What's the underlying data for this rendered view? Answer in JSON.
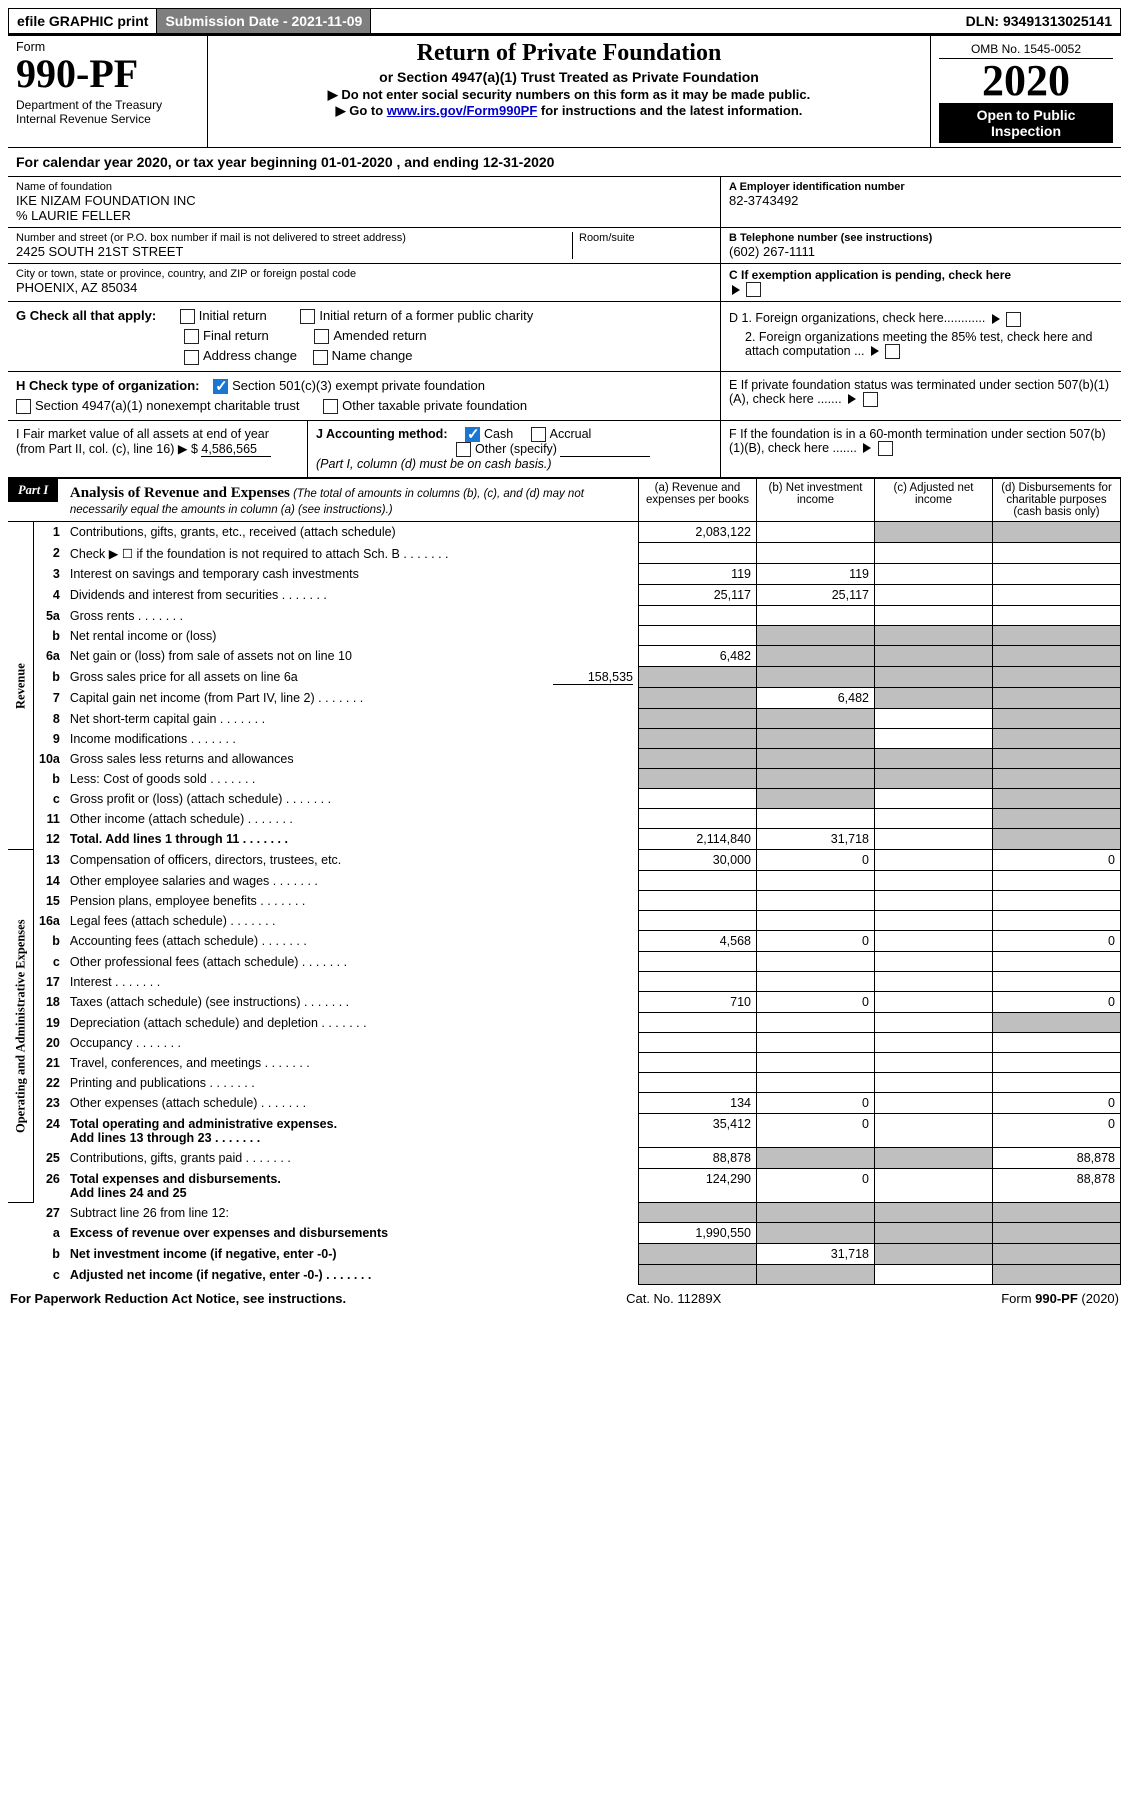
{
  "topbar": {
    "efile": "efile GRAPHIC print",
    "submission": "Submission Date - 2021-11-09",
    "dln": "DLN: 93491313025141"
  },
  "header": {
    "form_word": "Form",
    "form_no": "990-PF",
    "dept": "Department of the Treasury\nInternal Revenue Service",
    "title": "Return of Private Foundation",
    "subtitle": "or Section 4947(a)(1) Trust Treated as Private Foundation",
    "line1": "▶ Do not enter social security numbers on this form as it may be made public.",
    "line2_pre": "▶ Go to ",
    "line2_link": "www.irs.gov/Form990PF",
    "line2_post": " for instructions and the latest information.",
    "omb": "OMB No. 1545-0052",
    "year": "2020",
    "open": "Open to Public Inspection"
  },
  "calyear": "For calendar year 2020, or tax year beginning 01-01-2020                      , and ending 12-31-2020",
  "id": {
    "name_label": "Name of foundation",
    "name": "IKE NIZAM FOUNDATION INC\n% LAURIE FELLER",
    "ein_label": "A Employer identification number",
    "ein": "82-3743492",
    "addr_label": "Number and street (or P.O. box number if mail is not delivered to street address)",
    "addr": "2425 SOUTH 21ST STREET",
    "room_label": "Room/suite",
    "tel_label": "B Telephone number (see instructions)",
    "tel": "(602) 267-1111",
    "city_label": "City or town, state or province, country, and ZIP or foreign postal code",
    "city": "PHOENIX, AZ  85034",
    "c_label": "C If exemption application is pending, check here"
  },
  "g": {
    "label": "G Check all that apply:",
    "initial": "Initial return",
    "initial_former": "Initial return of a former public charity",
    "final": "Final return",
    "amended": "Amended return",
    "address": "Address change",
    "namechg": "Name change"
  },
  "h": {
    "label": "H Check type of organization:",
    "501c3": "Section 501(c)(3) exempt private foundation",
    "4947": "Section 4947(a)(1) nonexempt charitable trust",
    "other_tax": "Other taxable private foundation"
  },
  "d": {
    "d1": "D 1. Foreign organizations, check here............",
    "d2": "2. Foreign organizations meeting the 85% test, check here and attach computation ..."
  },
  "e": "E  If private foundation status was terminated under section 507(b)(1)(A), check here .......",
  "i": {
    "label": "I Fair market value of all assets at end of year (from Part II, col. (c), line 16)",
    "arrow": "▶ $",
    "value": "4,586,565"
  },
  "j": {
    "label": "J Accounting method:",
    "cash": "Cash",
    "accrual": "Accrual",
    "other": "Other (specify)",
    "note": "(Part I, column (d) must be on cash basis.)"
  },
  "f": "F  If the foundation is in a 60-month termination under section 507(b)(1)(B), check here .......",
  "part1": {
    "badge": "Part I",
    "title": "Analysis of Revenue and Expenses",
    "title_sub": " (The total of amounts in columns (b), (c), and (d) may not necessarily equal the amounts in column (a) (see instructions).)",
    "col_a": "(a)   Revenue and expenses per books",
    "col_b": "(b)   Net investment income",
    "col_c": "(c)   Adjusted net income",
    "col_d": "(d)  Disbursements for charitable purposes (cash basis only)"
  },
  "side": {
    "revenue": "Revenue",
    "expenses": "Operating and Administrative Expenses"
  },
  "rows": [
    {
      "n": "1",
      "t": "Contributions, gifts, grants, etc., received (attach schedule)",
      "a": "2,083,122",
      "b": "",
      "c": "shade",
      "d": "shade"
    },
    {
      "n": "2",
      "t": "Check ▶ ☐ if the foundation is not required to attach Sch. B",
      "dots": true
    },
    {
      "n": "3",
      "t": "Interest on savings and temporary cash investments",
      "a": "119",
      "b": "119"
    },
    {
      "n": "4",
      "t": "Dividends and interest from securities",
      "a": "25,117",
      "b": "25,117",
      "dots": true
    },
    {
      "n": "5a",
      "t": "Gross rents",
      "dots": true
    },
    {
      "n": "b",
      "t": "Net rental income or (loss)",
      "halfshade": true
    },
    {
      "n": "6a",
      "t": "Net gain or (loss) from sale of assets not on line 10",
      "a": "6,482",
      "b": "shade",
      "c": "shade",
      "d": "shade"
    },
    {
      "n": "b",
      "t": "Gross sales price for all assets on line 6a",
      "inline_val": "158,535",
      "allshade": true
    },
    {
      "n": "7",
      "t": "Capital gain net income (from Part IV, line 2)",
      "a": "shade",
      "b": "6,482",
      "c": "shade",
      "d": "shade",
      "dots": true
    },
    {
      "n": "8",
      "t": "Net short-term capital gain",
      "a": "shade",
      "b": "shade",
      "d": "shade",
      "dots": true
    },
    {
      "n": "9",
      "t": "Income modifications",
      "a": "shade",
      "b": "shade",
      "d": "shade",
      "dots": true
    },
    {
      "n": "10a",
      "t": "Gross sales less returns and allowances",
      "allshade": true
    },
    {
      "n": "b",
      "t": "Less: Cost of goods sold",
      "allshade": true,
      "dots": true
    },
    {
      "n": "c",
      "t": "Gross profit or (loss) (attach schedule)",
      "a": "",
      "b": "shade",
      "d": "shade",
      "dots": true
    },
    {
      "n": "11",
      "t": "Other income (attach schedule)",
      "d": "shade",
      "dots": true
    },
    {
      "n": "12",
      "t": "Total. Add lines 1 through 11",
      "a": "2,114,840",
      "b": "31,718",
      "d": "shade",
      "bold": true,
      "dots": true
    }
  ],
  "rows2": [
    {
      "n": "13",
      "t": "Compensation of officers, directors, trustees, etc.",
      "a": "30,000",
      "b": "0",
      "d": "0"
    },
    {
      "n": "14",
      "t": "Other employee salaries and wages",
      "dots": true
    },
    {
      "n": "15",
      "t": "Pension plans, employee benefits",
      "dots": true
    },
    {
      "n": "16a",
      "t": "Legal fees (attach schedule)",
      "dots": true
    },
    {
      "n": "b",
      "t": "Accounting fees (attach schedule)",
      "a": "4,568",
      "b": "0",
      "d": "0",
      "dots": true
    },
    {
      "n": "c",
      "t": "Other professional fees (attach schedule)",
      "dots": true
    },
    {
      "n": "17",
      "t": "Interest",
      "dots": true
    },
    {
      "n": "18",
      "t": "Taxes (attach schedule) (see instructions)",
      "a": "710",
      "b": "0",
      "d": "0",
      "dots": true
    },
    {
      "n": "19",
      "t": "Depreciation (attach schedule) and depletion",
      "d": "shade",
      "dots": true
    },
    {
      "n": "20",
      "t": "Occupancy",
      "dots": true
    },
    {
      "n": "21",
      "t": "Travel, conferences, and meetings",
      "dots": true
    },
    {
      "n": "22",
      "t": "Printing and publications",
      "dots": true
    },
    {
      "n": "23",
      "t": "Other expenses (attach schedule)",
      "a": "134",
      "b": "0",
      "d": "0",
      "dots": true
    },
    {
      "n": "24",
      "t": "Total operating and administrative expenses. Add lines 13 through 23",
      "a": "35,412",
      "b": "0",
      "d": "0",
      "bold": true,
      "dots": true,
      "two": true
    },
    {
      "n": "25",
      "t": "Contributions, gifts, grants paid",
      "a": "88,878",
      "b": "shade",
      "c": "shade",
      "d": "88,878",
      "dots": true
    },
    {
      "n": "26",
      "t": "Total expenses and disbursements. Add lines 24 and 25",
      "a": "124,290",
      "b": "0",
      "d": "88,878",
      "bold": true,
      "two": true
    }
  ],
  "rows3": [
    {
      "n": "27",
      "t": "Subtract line 26 from line 12:",
      "allshade": true
    },
    {
      "n": "a",
      "t": "Excess of revenue over expenses and disbursements",
      "a": "1,990,550",
      "b": "shade",
      "c": "shade",
      "d": "shade",
      "bold": true
    },
    {
      "n": "b",
      "t": "Net investment income (if negative, enter -0-)",
      "a": "shade",
      "b": "31,718",
      "c": "shade",
      "d": "shade",
      "bold": true
    },
    {
      "n": "c",
      "t": "Adjusted net income (if negative, enter -0-)",
      "a": "shade",
      "b": "shade",
      "d": "shade",
      "bold": true,
      "dots": true
    }
  ],
  "footer": {
    "left": "For Paperwork Reduction Act Notice, see instructions.",
    "mid": "Cat. No. 11289X",
    "right": "Form 990-PF (2020)"
  }
}
